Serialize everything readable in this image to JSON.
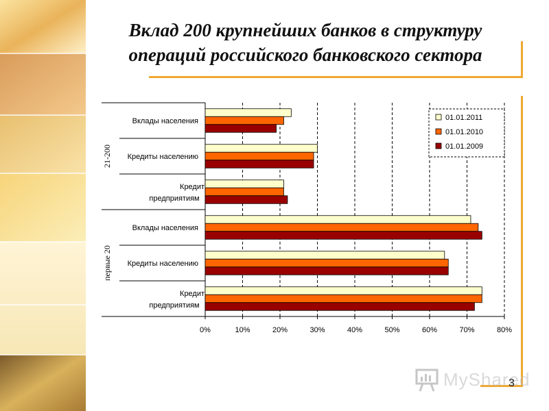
{
  "slide": {
    "title_line1": "Вклад 200 крупнейших банков в структуру",
    "title_line2": "операций российского банковского сектора",
    "number": "3",
    "watermark": "MyShared",
    "accent_color": "#f0a830"
  },
  "chart_data": {
    "type": "bar",
    "orientation": "horizontal",
    "groups": [
      {
        "name": "21-200",
        "categories": [
          "Вклады населения",
          "Кредиты населению",
          "Кредиты предприятиям"
        ]
      },
      {
        "name": "первые 20",
        "categories": [
          "Вклады населения",
          "Кредиты населению",
          "Кредиты предприятиям"
        ]
      }
    ],
    "series": [
      {
        "name": "01.01.2011",
        "color": "#ffffcc",
        "values": [
          23,
          30,
          21,
          71,
          64,
          74
        ]
      },
      {
        "name": "01.01.2010",
        "color": "#ff6600",
        "values": [
          21,
          29,
          21,
          73,
          65,
          74
        ]
      },
      {
        "name": "01.01.2009",
        "color": "#990000",
        "values": [
          19,
          29,
          22,
          74,
          65,
          72
        ]
      }
    ],
    "xlim": [
      0,
      80
    ],
    "xticks": [
      "0%",
      "10%",
      "20%",
      "30%",
      "40%",
      "50%",
      "60%",
      "70%",
      "80%"
    ],
    "grid": "vertical dashed",
    "legend_position": "top-right"
  }
}
